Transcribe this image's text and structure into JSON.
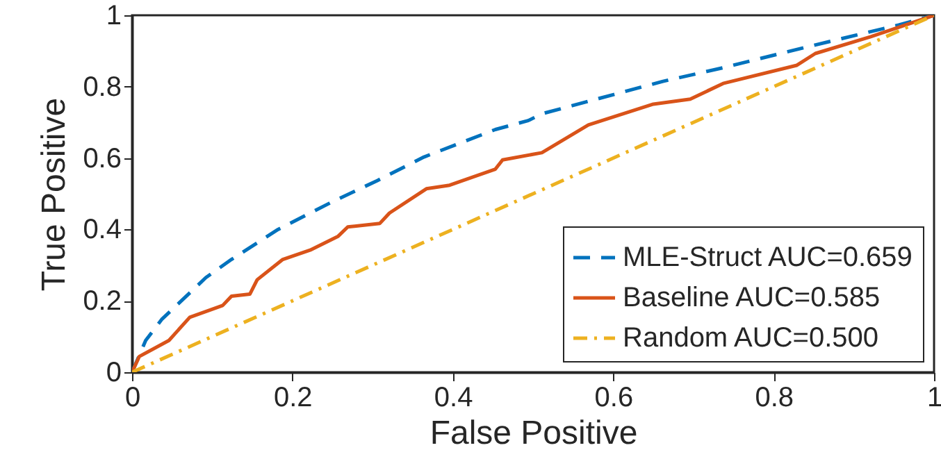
{
  "chart_data": {
    "type": "line",
    "xlabel": "False Positive",
    "ylabel": "True Positive",
    "xlim": [
      0,
      1
    ],
    "ylim": [
      0,
      1
    ],
    "xticks": [
      0,
      0.2,
      0.4,
      0.6,
      0.8,
      1
    ],
    "yticks": [
      0,
      0.2,
      0.4,
      0.6,
      0.8,
      1
    ],
    "grid": false,
    "legend": "bottom right",
    "marker": "none",
    "series": [
      {
        "name": "MLE-Struct AUC=0.659",
        "color": "#0072bd",
        "line_style": "dashed",
        "x": [
          0,
          0.017,
          0.037,
          0.092,
          0.124,
          0.182,
          0.251,
          0.306,
          0.364,
          0.453,
          0.494,
          0.511,
          0.662,
          0.737,
          0.841,
          0.956,
          1
        ],
        "values": [
          0,
          0.089,
          0.148,
          0.265,
          0.316,
          0.4,
          0.479,
          0.537,
          0.603,
          0.68,
          0.705,
          0.724,
          0.815,
          0.853,
          0.911,
          0.973,
          1
        ]
      },
      {
        "name": "Baseline AUC=0.585",
        "color": "#d95319",
        "line_style": "solid",
        "x": [
          0,
          0.009,
          0.046,
          0.072,
          0.113,
          0.124,
          0.147,
          0.156,
          0.188,
          0.222,
          0.257,
          0.269,
          0.309,
          0.321,
          0.367,
          0.396,
          0.453,
          0.462,
          0.511,
          0.569,
          0.65,
          0.696,
          0.737,
          0.829,
          0.852,
          0.921,
          1
        ],
        "values": [
          0,
          0.044,
          0.089,
          0.154,
          0.187,
          0.213,
          0.219,
          0.259,
          0.316,
          0.342,
          0.381,
          0.407,
          0.417,
          0.446,
          0.514,
          0.524,
          0.569,
          0.595,
          0.615,
          0.693,
          0.751,
          0.765,
          0.809,
          0.86,
          0.893,
          0.94,
          1
        ]
      },
      {
        "name": "Random AUC=0.500",
        "color": "#edb120",
        "line_style": "dashdot",
        "x": [
          0,
          1
        ],
        "values": [
          0,
          1
        ]
      }
    ]
  }
}
